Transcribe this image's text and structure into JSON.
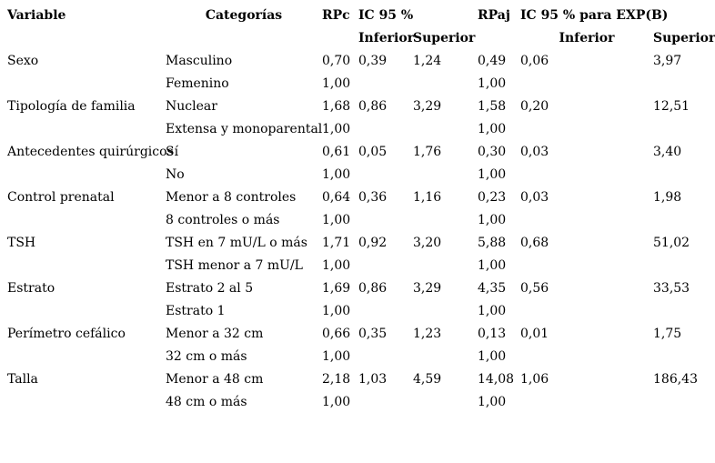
{
  "table": {
    "header": {
      "variable": "Variable",
      "categorias": "Categorías",
      "rpc": "RPc",
      "ic95": "IC 95 %",
      "rpaj": "RPaj",
      "ic95_expb": "IC 95 % para EXP(B)",
      "inferior": "Inferior",
      "superior": "Superior"
    },
    "rows": [
      {
        "variable": "Sexo",
        "categoria": "Masculino",
        "rpc": "0,70",
        "ic_inf": "0,39",
        "ic_sup": "1,24",
        "rpaj": "0,49",
        "exp_inf": "0,06",
        "exp_sup": "3,97"
      },
      {
        "variable": "",
        "categoria": "Femenino",
        "rpc": "1,00",
        "ic_inf": "",
        "ic_sup": "",
        "rpaj": "1,00",
        "exp_inf": "",
        "exp_sup": ""
      },
      {
        "variable": "Tipología de familia",
        "categoria": "Nuclear",
        "rpc": "1,68",
        "ic_inf": "0,86",
        "ic_sup": "3,29",
        "rpaj": "1,58",
        "exp_inf": "0,20",
        "exp_sup": "12,51"
      },
      {
        "variable": "",
        "categoria": "Extensa y monoparental",
        "rpc": "1,00",
        "ic_inf": "",
        "ic_sup": "",
        "rpaj": "1,00",
        "exp_inf": "",
        "exp_sup": ""
      },
      {
        "variable": "Antecedentes quirúrgicos",
        "categoria": "Sí",
        "rpc": "0,61",
        "ic_inf": "0,05",
        "ic_sup": "1,76",
        "rpaj": "0,30",
        "exp_inf": "0,03",
        "exp_sup": "3,40"
      },
      {
        "variable": "",
        "categoria": "No",
        "rpc": "1,00",
        "ic_inf": "",
        "ic_sup": "",
        "rpaj": "1,00",
        "exp_inf": "",
        "exp_sup": ""
      },
      {
        "variable": "Control prenatal",
        "categoria": "Menor a 8 controles",
        "rpc": "0,64",
        "ic_inf": "0,36",
        "ic_sup": "1,16",
        "rpaj": "0,23",
        "exp_inf": "0,03",
        "exp_sup": "1,98"
      },
      {
        "variable": "",
        "categoria": "8 controles o más",
        "rpc": "1,00",
        "ic_inf": "",
        "ic_sup": "",
        "rpaj": "1,00",
        "exp_inf": "",
        "exp_sup": ""
      },
      {
        "variable": "TSH",
        "categoria": "TSH en 7 mU/L o más",
        "rpc": "1,71",
        "ic_inf": "0,92",
        "ic_sup": "3,20",
        "rpaj": "5,88",
        "exp_inf": "0,68",
        "exp_sup": "51,02"
      },
      {
        "variable": "",
        "categoria": "TSH menor a 7 mU/L",
        "rpc": "1,00",
        "ic_inf": "",
        "ic_sup": "",
        "rpaj": "1,00",
        "exp_inf": "",
        "exp_sup": ""
      },
      {
        "variable": "Estrato",
        "categoria": "Estrato 2 al 5",
        "rpc": "1,69",
        "ic_inf": "0,86",
        "ic_sup": "3,29",
        "rpaj": "4,35",
        "exp_inf": "0,56",
        "exp_sup": "33,53"
      },
      {
        "variable": "",
        "categoria": "Estrato 1",
        "rpc": "1,00",
        "ic_inf": "",
        "ic_sup": "",
        "rpaj": "1,00",
        "exp_inf": "",
        "exp_sup": ""
      },
      {
        "variable": "Perímetro cefálico",
        "categoria": "Menor a 32 cm",
        "rpc": "0,66",
        "ic_inf": "0,35",
        "ic_sup": "1,23",
        "rpaj": "0,13",
        "exp_inf": "0,01",
        "exp_sup": "1,75"
      },
      {
        "variable": "",
        "categoria": "32 cm o más",
        "rpc": "1,00",
        "ic_inf": "",
        "ic_sup": "",
        "rpaj": "1,00",
        "exp_inf": "",
        "exp_sup": ""
      },
      {
        "variable": "Talla",
        "categoria": "Menor a 48 cm",
        "rpc": "2,18",
        "ic_inf": "1,03",
        "ic_sup": "4,59",
        "rpaj": "14,08",
        "exp_inf": "1,06",
        "exp_sup": "186,43"
      },
      {
        "variable": "",
        "categoria": "48 cm o más",
        "rpc": "1,00",
        "ic_inf": "",
        "ic_sup": "",
        "rpaj": "1,00",
        "exp_inf": "",
        "exp_sup": ""
      }
    ]
  }
}
